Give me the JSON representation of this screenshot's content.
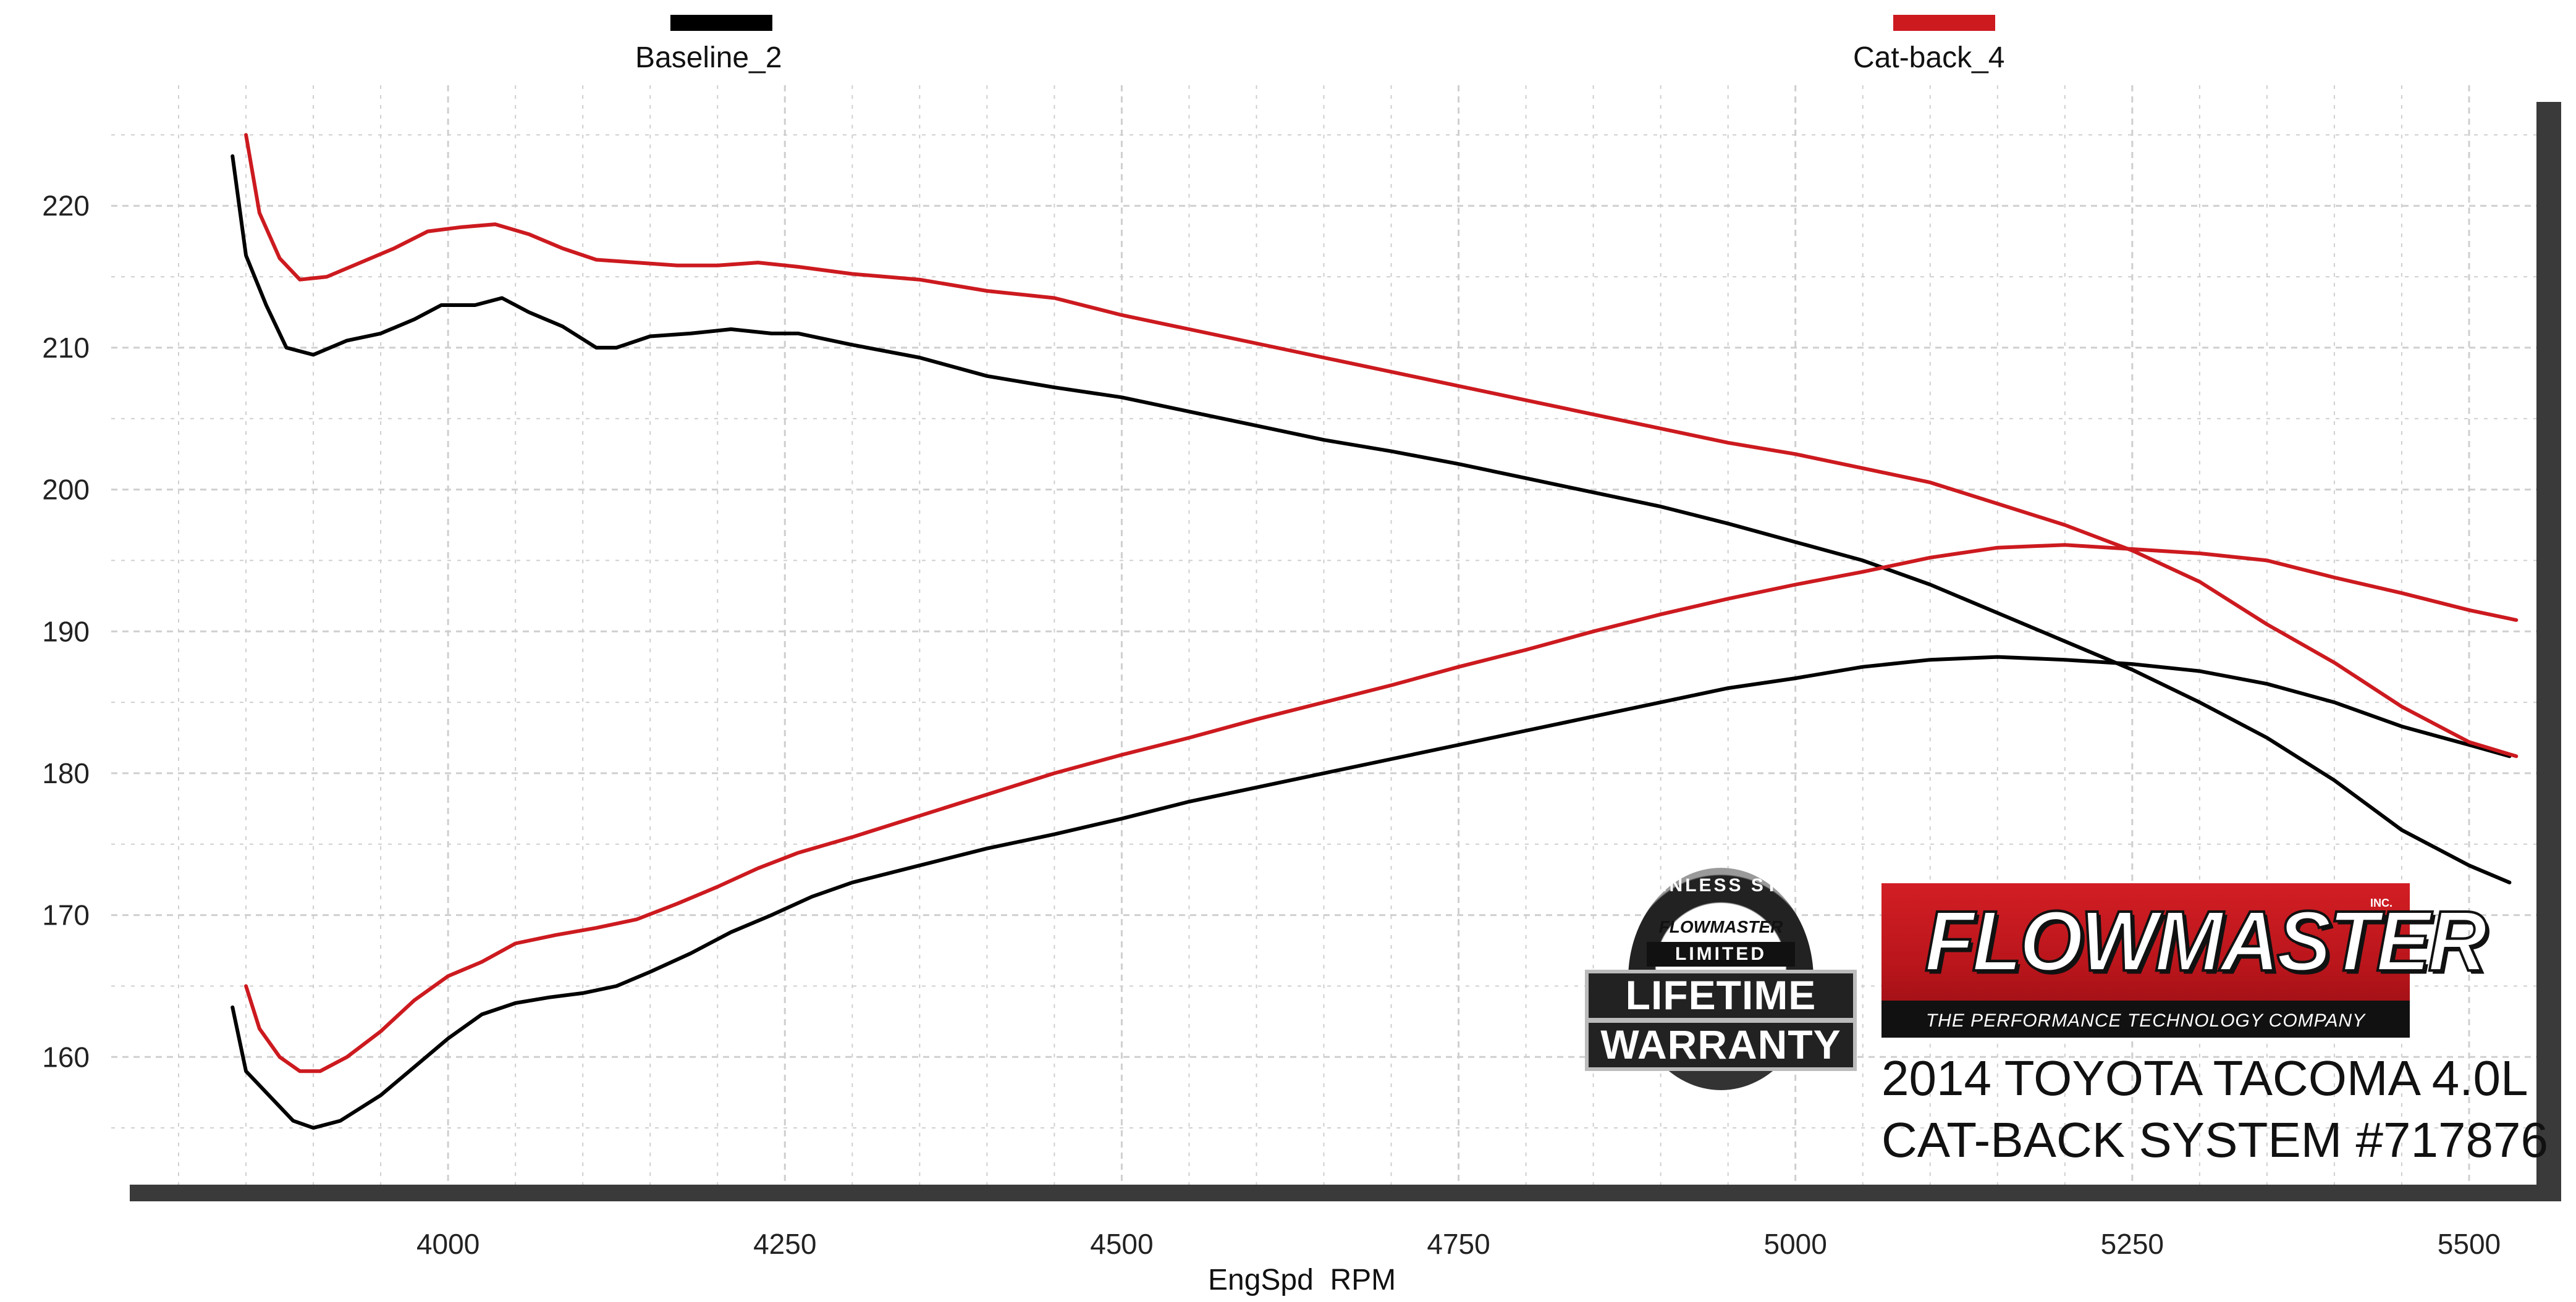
{
  "colors": {
    "baseline": "#000000",
    "catback": "#cc1a1f",
    "grid": "#cfcfcf",
    "plot_bg": "#ffffff",
    "shadow": "#3a3a3a"
  },
  "legend": [
    {
      "name": "Baseline_2",
      "color": "#000000"
    },
    {
      "name": "Cat-back_4",
      "color": "#cc1a1f"
    }
  ],
  "brand": {
    "name": "FLOWMASTER",
    "inc": "INC.",
    "tagline": "THE PERFORMANCE TECHNOLOGY COMPANY",
    "vehicle": "2014 TOYOTA TACOMA 4.0L",
    "system": "CAT-BACK SYSTEM #717876"
  },
  "badge": {
    "arc_text": "STAINLESS STEEL",
    "brand": "FLOWMASTER",
    "limited": "LIMITED",
    "line1": "LIFETIME",
    "line2": "WARRANTY",
    "icon": "lifetime-warranty-seal-icon"
  },
  "chart_data": {
    "type": "line",
    "title": "",
    "xlabel": "EngSpd  RPM",
    "ylabel": "",
    "xlim": [
      3750,
      5550
    ],
    "ylim": [
      151,
      228.5
    ],
    "x_ticks": [
      4000,
      4250,
      4500,
      4750,
      5000,
      5250,
      5500
    ],
    "y_ticks": [
      160,
      170,
      180,
      190,
      200,
      210,
      220
    ],
    "grid": true,
    "legend_position": "top",
    "series": [
      {
        "name": "Baseline_2",
        "quantity": "torque",
        "color": "#000000",
        "points": [
          [
            3840,
            223.5
          ],
          [
            3850,
            216.5
          ],
          [
            3865,
            213
          ],
          [
            3880,
            210
          ],
          [
            3900,
            209.5
          ],
          [
            3925,
            210.5
          ],
          [
            3950,
            211
          ],
          [
            3975,
            212
          ],
          [
            3995,
            213
          ],
          [
            4020,
            213
          ],
          [
            4040,
            213.5
          ],
          [
            4060,
            212.5
          ],
          [
            4085,
            211.5
          ],
          [
            4110,
            210
          ],
          [
            4125,
            210
          ],
          [
            4150,
            210.8
          ],
          [
            4180,
            211
          ],
          [
            4210,
            211.3
          ],
          [
            4240,
            211
          ],
          [
            4260,
            211
          ],
          [
            4300,
            210.2
          ],
          [
            4350,
            209.3
          ],
          [
            4400,
            208
          ],
          [
            4450,
            207.2
          ],
          [
            4500,
            206.5
          ],
          [
            4550,
            205.5
          ],
          [
            4600,
            204.5
          ],
          [
            4650,
            203.5
          ],
          [
            4700,
            202.7
          ],
          [
            4750,
            201.8
          ],
          [
            4800,
            200.8
          ],
          [
            4850,
            199.8
          ],
          [
            4900,
            198.8
          ],
          [
            4950,
            197.6
          ],
          [
            5000,
            196.3
          ],
          [
            5050,
            195
          ],
          [
            5100,
            193.3
          ],
          [
            5150,
            191.3
          ],
          [
            5200,
            189.3
          ],
          [
            5250,
            187.3
          ],
          [
            5300,
            185
          ],
          [
            5350,
            182.5
          ],
          [
            5400,
            179.5
          ],
          [
            5450,
            176
          ],
          [
            5500,
            173.5
          ],
          [
            5530,
            172.3
          ]
        ]
      },
      {
        "name": "Baseline_2",
        "quantity": "horsepower",
        "color": "#000000",
        "points": [
          [
            3840,
            163.5
          ],
          [
            3850,
            159
          ],
          [
            3870,
            157
          ],
          [
            3885,
            155.5
          ],
          [
            3900,
            155
          ],
          [
            3920,
            155.5
          ],
          [
            3950,
            157.3
          ],
          [
            3975,
            159.3
          ],
          [
            4000,
            161.3
          ],
          [
            4025,
            163
          ],
          [
            4050,
            163.8
          ],
          [
            4075,
            164.2
          ],
          [
            4100,
            164.5
          ],
          [
            4125,
            165
          ],
          [
            4150,
            166
          ],
          [
            4180,
            167.3
          ],
          [
            4210,
            168.8
          ],
          [
            4240,
            170
          ],
          [
            4270,
            171.3
          ],
          [
            4300,
            172.3
          ],
          [
            4350,
            173.5
          ],
          [
            4400,
            174.7
          ],
          [
            4450,
            175.7
          ],
          [
            4500,
            176.8
          ],
          [
            4550,
            178
          ],
          [
            4600,
            179
          ],
          [
            4650,
            180
          ],
          [
            4700,
            181
          ],
          [
            4750,
            182
          ],
          [
            4800,
            183
          ],
          [
            4850,
            184
          ],
          [
            4900,
            185
          ],
          [
            4950,
            186
          ],
          [
            5000,
            186.7
          ],
          [
            5050,
            187.5
          ],
          [
            5100,
            188
          ],
          [
            5150,
            188.2
          ],
          [
            5200,
            188
          ],
          [
            5250,
            187.7
          ],
          [
            5300,
            187.2
          ],
          [
            5350,
            186.3
          ],
          [
            5400,
            185
          ],
          [
            5450,
            183.3
          ],
          [
            5500,
            182
          ],
          [
            5530,
            181.2
          ]
        ]
      },
      {
        "name": "Cat-back_4",
        "quantity": "torque",
        "color": "#cc1a1f",
        "points": [
          [
            3850,
            225
          ],
          [
            3860,
            219.5
          ],
          [
            3875,
            216.3
          ],
          [
            3890,
            214.8
          ],
          [
            3910,
            215
          ],
          [
            3935,
            216
          ],
          [
            3960,
            217
          ],
          [
            3985,
            218.2
          ],
          [
            4010,
            218.5
          ],
          [
            4035,
            218.7
          ],
          [
            4060,
            218
          ],
          [
            4085,
            217
          ],
          [
            4110,
            216.2
          ],
          [
            4140,
            216
          ],
          [
            4170,
            215.8
          ],
          [
            4200,
            215.8
          ],
          [
            4230,
            216
          ],
          [
            4260,
            215.7
          ],
          [
            4300,
            215.2
          ],
          [
            4350,
            214.8
          ],
          [
            4400,
            214
          ],
          [
            4450,
            213.5
          ],
          [
            4500,
            212.3
          ],
          [
            4550,
            211.3
          ],
          [
            4600,
            210.3
          ],
          [
            4650,
            209.3
          ],
          [
            4700,
            208.3
          ],
          [
            4750,
            207.3
          ],
          [
            4800,
            206.3
          ],
          [
            4850,
            205.3
          ],
          [
            4900,
            204.3
          ],
          [
            4950,
            203.3
          ],
          [
            5000,
            202.5
          ],
          [
            5050,
            201.5
          ],
          [
            5100,
            200.5
          ],
          [
            5150,
            199
          ],
          [
            5200,
            197.5
          ],
          [
            5250,
            195.7
          ],
          [
            5300,
            193.5
          ],
          [
            5350,
            190.5
          ],
          [
            5400,
            187.8
          ],
          [
            5450,
            184.7
          ],
          [
            5500,
            182.2
          ],
          [
            5535,
            181.2
          ]
        ]
      },
      {
        "name": "Cat-back_4",
        "quantity": "horsepower",
        "color": "#cc1a1f",
        "points": [
          [
            3850,
            165
          ],
          [
            3860,
            162
          ],
          [
            3875,
            160
          ],
          [
            3890,
            159
          ],
          [
            3905,
            159
          ],
          [
            3925,
            160
          ],
          [
            3950,
            161.8
          ],
          [
            3975,
            164
          ],
          [
            4000,
            165.7
          ],
          [
            4025,
            166.7
          ],
          [
            4050,
            168
          ],
          [
            4080,
            168.6
          ],
          [
            4110,
            169.1
          ],
          [
            4140,
            169.7
          ],
          [
            4170,
            170.8
          ],
          [
            4200,
            172
          ],
          [
            4230,
            173.3
          ],
          [
            4260,
            174.4
          ],
          [
            4300,
            175.5
          ],
          [
            4350,
            177
          ],
          [
            4400,
            178.5
          ],
          [
            4450,
            180
          ],
          [
            4500,
            181.3
          ],
          [
            4550,
            182.5
          ],
          [
            4600,
            183.8
          ],
          [
            4650,
            185
          ],
          [
            4700,
            186.2
          ],
          [
            4750,
            187.5
          ],
          [
            4800,
            188.7
          ],
          [
            4850,
            190
          ],
          [
            4900,
            191.2
          ],
          [
            4950,
            192.3
          ],
          [
            5000,
            193.3
          ],
          [
            5050,
            194.2
          ],
          [
            5100,
            195.2
          ],
          [
            5150,
            195.9
          ],
          [
            5200,
            196.1
          ],
          [
            5250,
            195.8
          ],
          [
            5300,
            195.5
          ],
          [
            5350,
            195
          ],
          [
            5400,
            193.8
          ],
          [
            5450,
            192.7
          ],
          [
            5500,
            191.5
          ],
          [
            5535,
            190.8
          ]
        ]
      }
    ]
  }
}
